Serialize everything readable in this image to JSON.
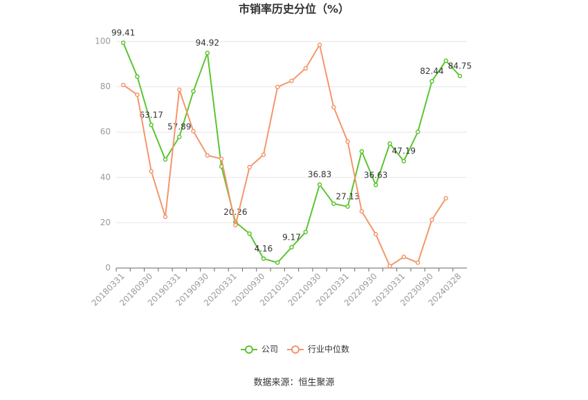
{
  "chart_data": {
    "type": "line",
    "title": "市销率历史分位（%）",
    "source": "数据来源：恒生聚源",
    "categories": [
      "20180331",
      null,
      "20180930",
      null,
      "20190331",
      null,
      "20190930",
      null,
      "20200331",
      null,
      "20200930",
      null,
      "20210331",
      null,
      "20210930",
      null,
      "20220331",
      null,
      "20220930",
      null,
      "20230331",
      null,
      "20230930",
      null,
      "20240328"
    ],
    "series": [
      {
        "name": "公司",
        "color": "#5bc42f",
        "values": [
          99.41,
          84.5,
          63.17,
          47.9,
          57.89,
          78.0,
          94.92,
          44.8,
          20.26,
          15.2,
          4.16,
          2.4,
          9.17,
          15.9,
          36.83,
          28.4,
          27.13,
          51.5,
          36.63,
          54.9,
          47.19,
          60.1,
          82.44,
          91.5,
          84.75
        ]
      },
      {
        "name": "行业中位数",
        "color": "#f4956a",
        "values": [
          80.8,
          76.5,
          42.7,
          22.6,
          78.7,
          60.4,
          49.7,
          48.2,
          18.9,
          44.5,
          50.0,
          79.9,
          82.6,
          88.1,
          98.5,
          71.0,
          55.8,
          25.0,
          14.9,
          0.9,
          4.9,
          2.4,
          21.3,
          30.8,
          null
        ]
      }
    ],
    "ylim": [
      0,
      100
    ],
    "yticks": [
      0,
      20,
      40,
      60,
      80,
      100
    ],
    "grid": true,
    "legend": "bottom"
  }
}
